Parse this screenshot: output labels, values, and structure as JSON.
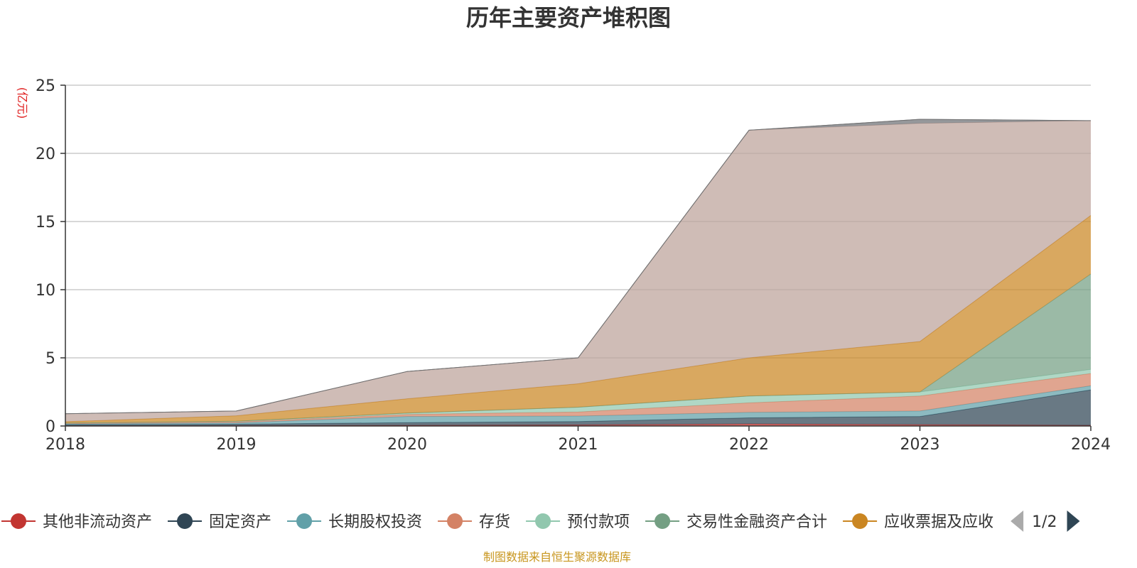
{
  "chart_data": {
    "type": "area",
    "stacked": true,
    "title": "历年主要资产堆积图",
    "y_unit": "(亿元)",
    "x": [
      "2018",
      "2019",
      "2020",
      "2021",
      "2022",
      "2023",
      "2024"
    ],
    "yticks": [
      "0",
      "5",
      "10",
      "15",
      "20",
      "25"
    ],
    "ylim": [
      0,
      25
    ],
    "grid": true,
    "legend_position": "bottom",
    "series": [
      {
        "name": "其他非流动资产",
        "color": "#c23531",
        "values": [
          0.02,
          0.03,
          0.05,
          0.08,
          0.15,
          0.1,
          0.05
        ]
      },
      {
        "name": "固定资产",
        "color": "#2f4554",
        "values": [
          0.08,
          0.1,
          0.2,
          0.25,
          0.45,
          0.6,
          2.6
        ]
      },
      {
        "name": "长期股权投资",
        "color": "#61a0a8",
        "values": [
          0.05,
          0.1,
          0.45,
          0.4,
          0.4,
          0.4,
          0.3
        ]
      },
      {
        "name": "存货",
        "color": "#d48265",
        "values": [
          0.05,
          0.07,
          0.15,
          0.3,
          0.7,
          1.1,
          0.9
        ]
      },
      {
        "name": "预付款项",
        "color": "#91c7ae",
        "values": [
          0.02,
          0.05,
          0.1,
          0.35,
          0.5,
          0.3,
          0.3
        ]
      },
      {
        "name": "交易性金融资产合计",
        "color": "#749f83",
        "values": [
          0,
          0,
          0,
          0,
          0,
          0,
          7.0
        ]
      },
      {
        "name": "应收票据及应收",
        "color": "#ca8622",
        "values": [
          0.1,
          0.4,
          1.05,
          1.72,
          2.8,
          3.7,
          4.3
        ]
      },
      {
        "name": "",
        "color": "#bda29a",
        "values": [
          0.58,
          0.35,
          2.0,
          1.9,
          16.7,
          16.0,
          6.95
        ]
      },
      {
        "name": "",
        "color": "#6e7074",
        "values": [
          0,
          0,
          0,
          0,
          0,
          0.3,
          0
        ]
      }
    ]
  },
  "legend": {
    "page": "1/2"
  },
  "source_note": "制图数据来自恒生聚源数据库",
  "colors": {
    "axis": "#333333",
    "grid": "#cccccc",
    "pager_inactive": "#aaaaaa",
    "pager_active": "#2f4554"
  }
}
